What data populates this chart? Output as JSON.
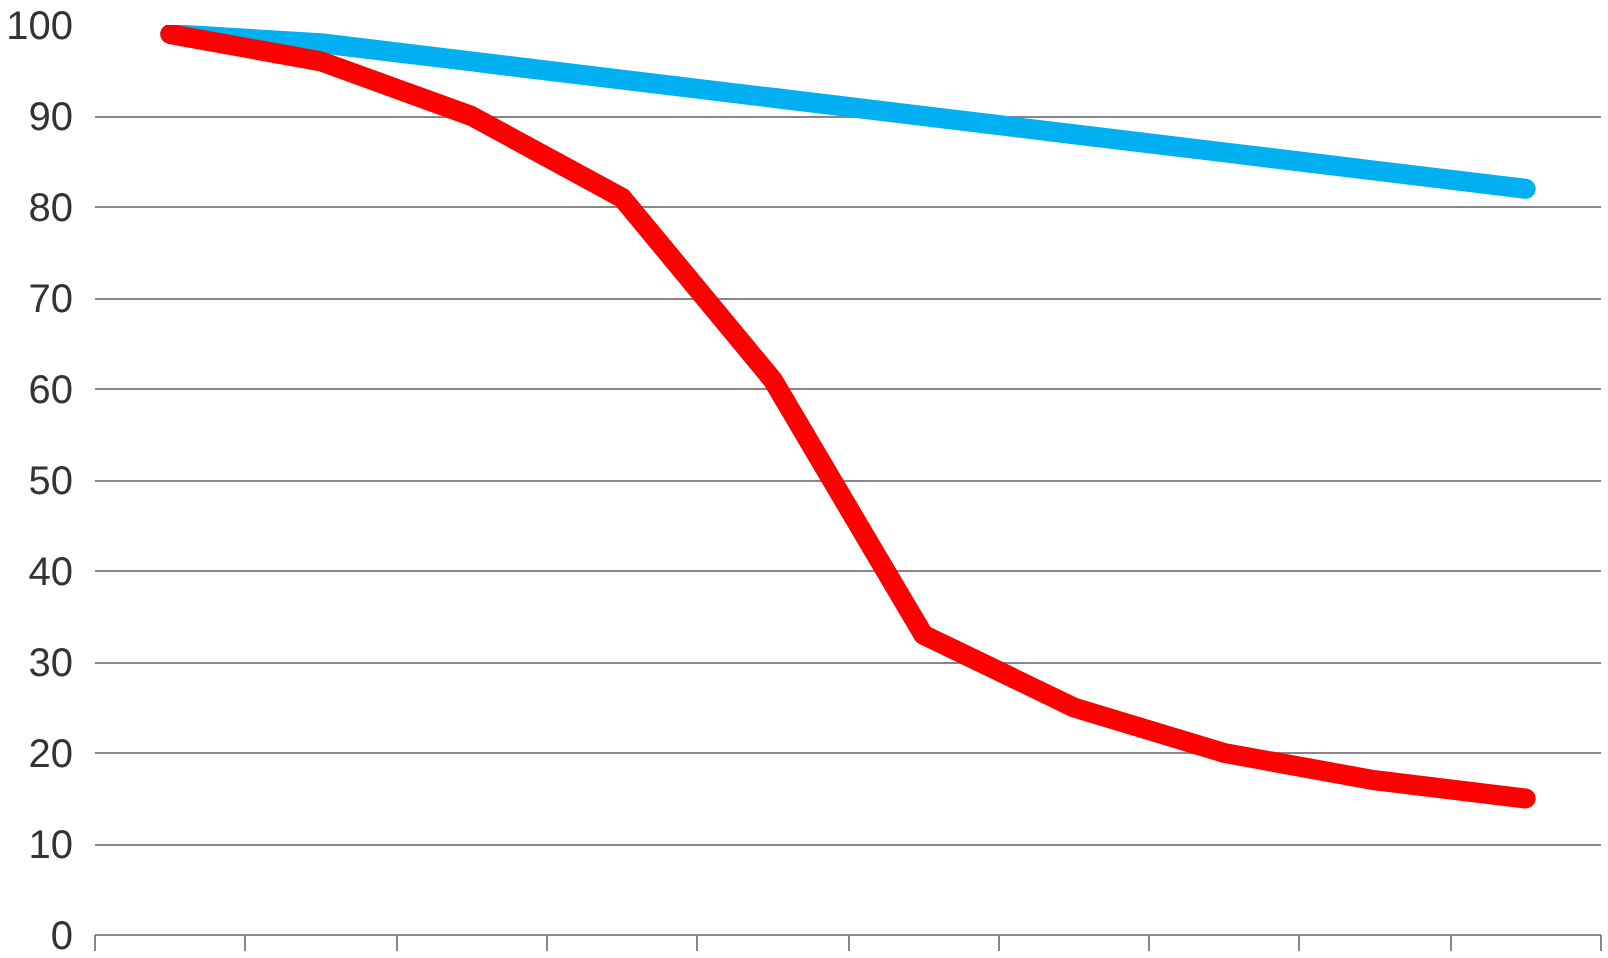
{
  "chart_data": {
    "type": "line",
    "categories": [
      null,
      null,
      null,
      null,
      null,
      null,
      null,
      null,
      null,
      null
    ],
    "series": [
      {
        "color": "#00b0f0",
        "values": [
          99,
          98,
          96,
          94,
          92,
          90,
          88,
          86,
          84,
          82
        ]
      },
      {
        "color": "#ff0000",
        "values": [
          99,
          96,
          90,
          81,
          61,
          33,
          25,
          20,
          17,
          15
        ]
      }
    ],
    "ylim": [
      0,
      100
    ],
    "yticks": [
      0,
      10,
      20,
      30,
      40,
      50,
      60,
      70,
      80,
      90,
      100
    ],
    "grid": "y",
    "line_style": "solid",
    "tick_labels": "y"
  }
}
